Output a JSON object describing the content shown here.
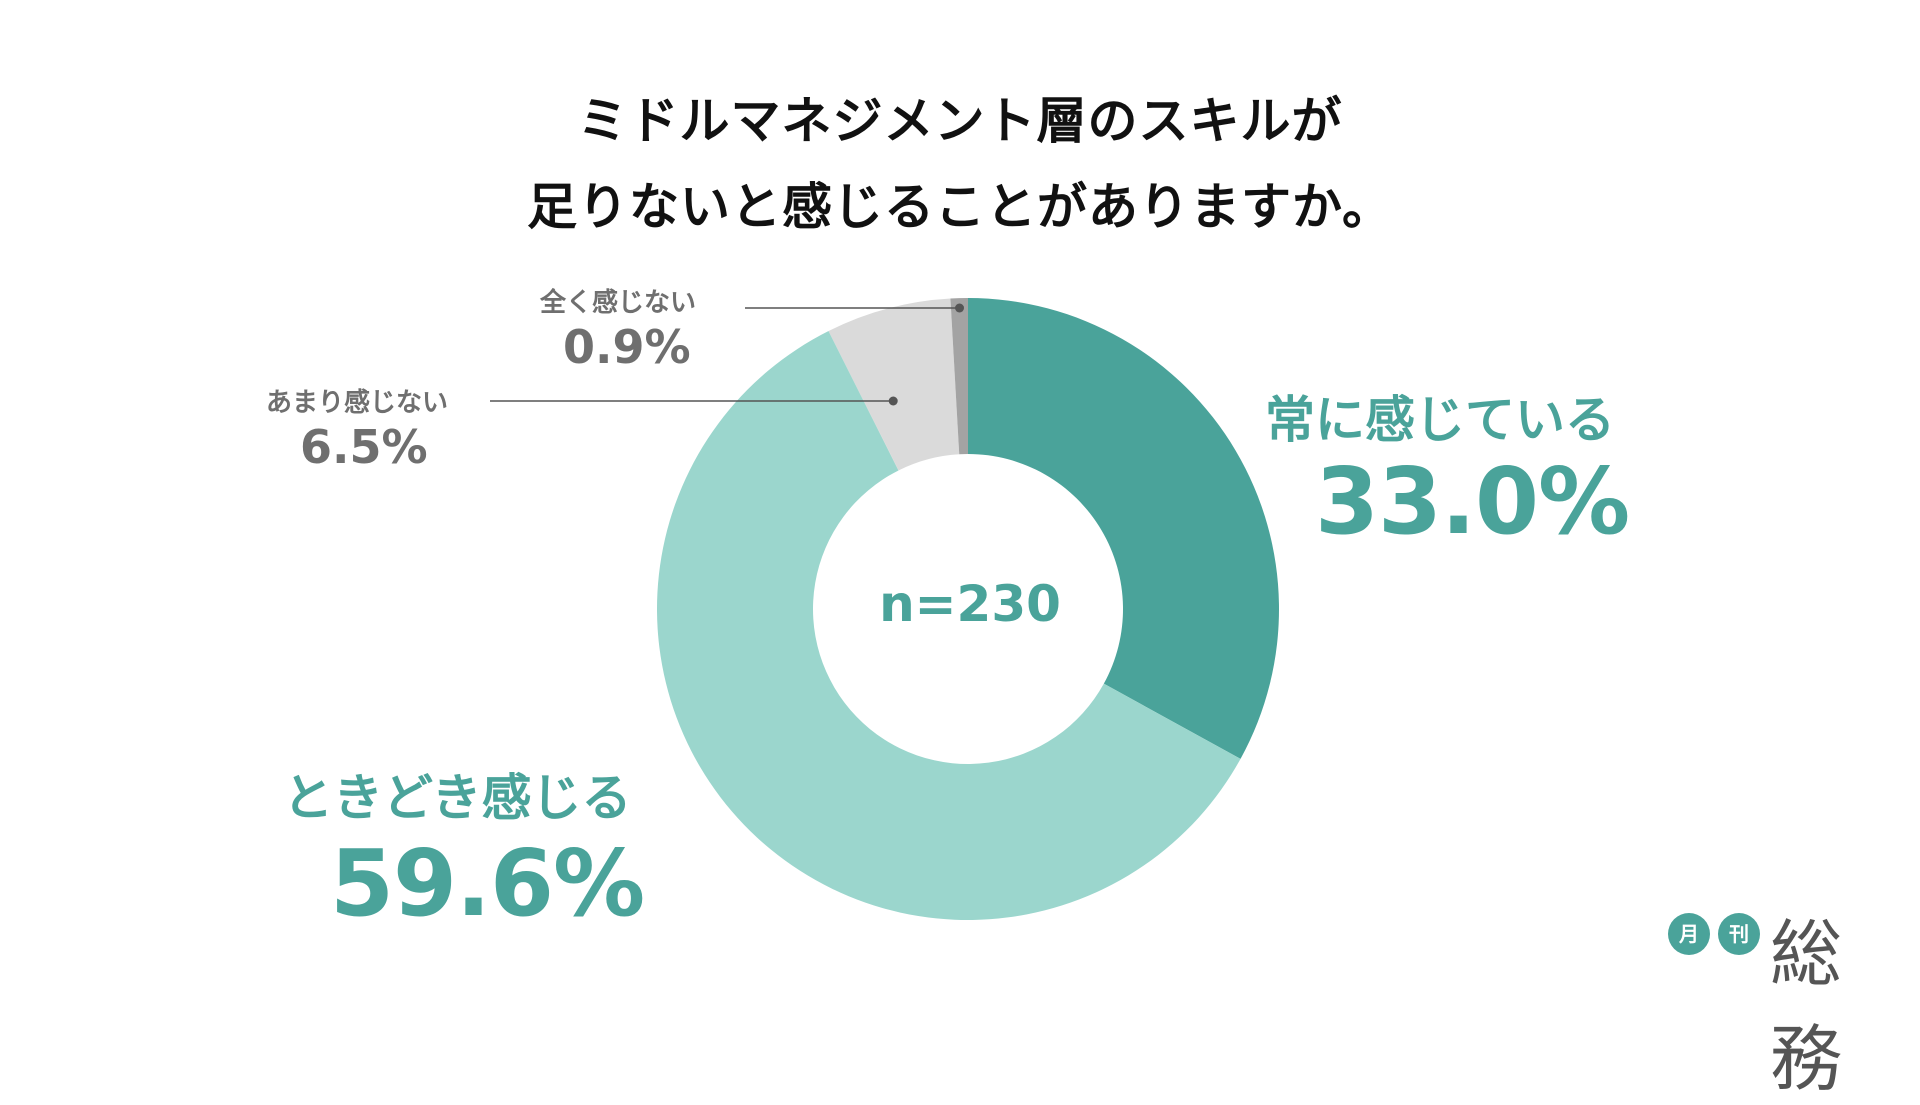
{
  "chart_data": {
    "type": "pie",
    "title": [
      "ミドルマネジメント層のスキルが",
      "足りないと感じることがありますか。"
    ],
    "center_label": "n=230",
    "slices": [
      {
        "label": "常に感じている",
        "value": 33.0,
        "display": "33.0%",
        "color": "#4aa39a"
      },
      {
        "label": "ときどき感じる",
        "value": 59.6,
        "display": "59.6%",
        "color": "#9bd6cd"
      },
      {
        "label": "あまり感じない",
        "value": 6.5,
        "display": "6.5%",
        "color": "#dadada"
      },
      {
        "label": "全く感じない",
        "value": 0.9,
        "display": "0.9%",
        "color": "#a3a3a3"
      }
    ],
    "donut": true,
    "legend": "none"
  },
  "logo": {
    "small1": "月",
    "small2": "刊",
    "word": "総務"
  }
}
